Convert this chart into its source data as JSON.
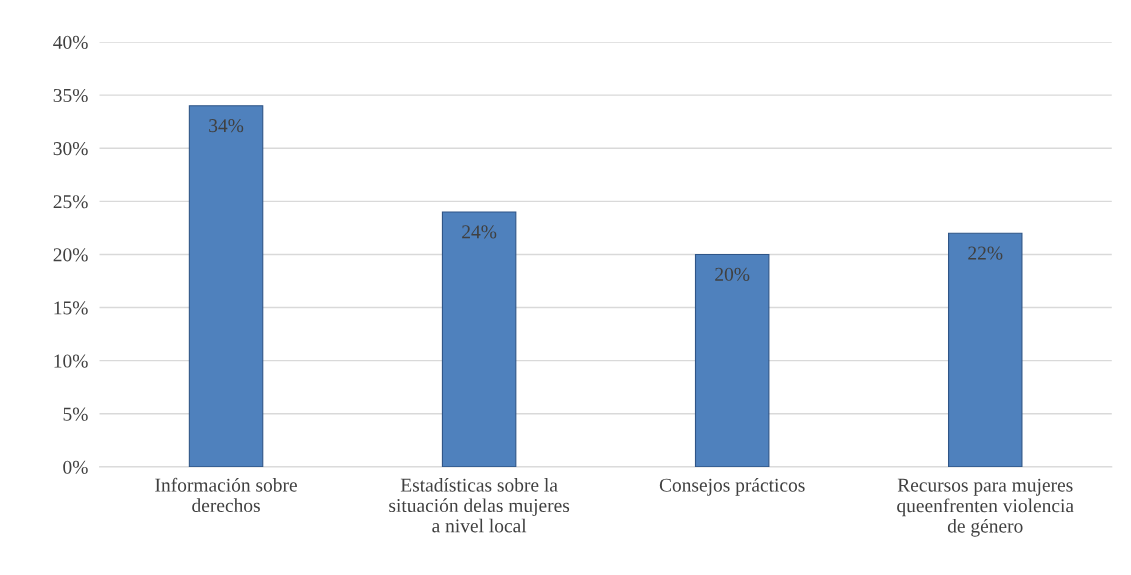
{
  "chart_data": {
    "type": "bar",
    "categories": [
      "Información sobre\nderechos",
      "Estadísticas sobre la\nsituación delas mujeres\na nivel local",
      "Consejos prácticos",
      "Recursos para mujeres\nqueenfrenten violencia\nde género"
    ],
    "values": [
      34,
      24,
      20,
      22
    ],
    "color": "#4f81bd",
    "value_labels": [
      "34%",
      "24%",
      "20%",
      "22%"
    ],
    "ylim": [
      0,
      40
    ],
    "yticks": [
      {
        "value": 0,
        "label": "0%"
      },
      {
        "value": 5,
        "label": "5%"
      },
      {
        "value": 10,
        "label": "10%"
      },
      {
        "value": 15,
        "label": "15%"
      },
      {
        "value": 20,
        "label": "20%"
      },
      {
        "value": 25,
        "label": "25%"
      },
      {
        "value": 30,
        "label": "30%"
      },
      {
        "value": 35,
        "label": "35%"
      },
      {
        "value": 40,
        "label": "40%"
      }
    ],
    "grid": "y",
    "legend": false
  }
}
